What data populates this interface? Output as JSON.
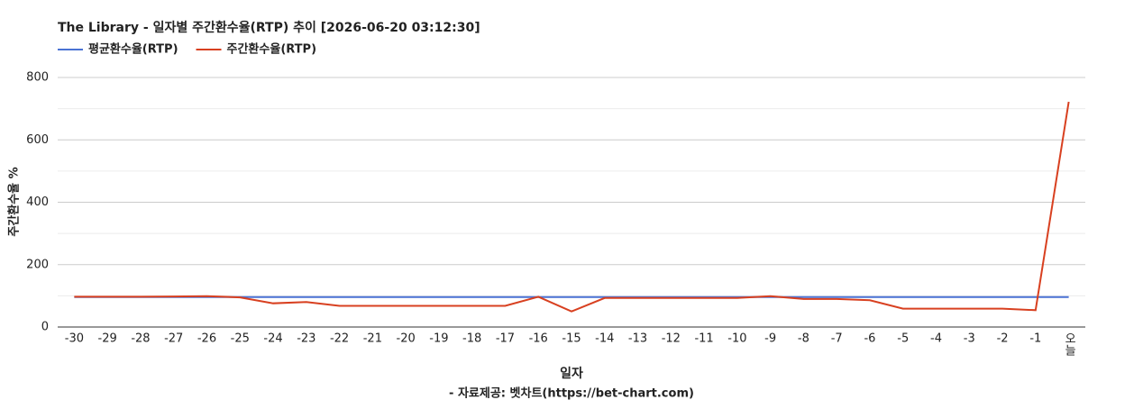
{
  "chart_data": {
    "type": "line",
    "title": "The Library - 일자별 주간환수율(RTP) 추이 [2026-06-20 03:12:30]",
    "x_label": "일자",
    "y_label": "주간환수율 %",
    "footer": "- 자료제공: 벳차트(https://bet-chart.com)",
    "categories": [
      "-30",
      "-29",
      "-28",
      "-27",
      "-26",
      "-25",
      "-24",
      "-23",
      "-22",
      "-21",
      "-20",
      "-19",
      "-18",
      "-17",
      "-16",
      "-15",
      "-14",
      "-13",
      "-12",
      "-11",
      "-10",
      "-9",
      "-8",
      "-7",
      "-6",
      "-5",
      "-4",
      "-3",
      "-2",
      "-1",
      "오늘"
    ],
    "series": [
      {
        "name": "평균환수율(RTP)",
        "color": "#4a72d4",
        "values": [
          96,
          96,
          96,
          96,
          96,
          96,
          96,
          96,
          96,
          96,
          96,
          96,
          96,
          96,
          96,
          96,
          96,
          96,
          96,
          96,
          96,
          96,
          96,
          96,
          96,
          96,
          96,
          96,
          96,
          96,
          96
        ]
      },
      {
        "name": "주간환수율(RTP)",
        "color": "#d84020",
        "values": [
          97,
          97,
          97,
          98,
          99,
          95,
          76,
          80,
          68,
          68,
          68,
          68,
          68,
          68,
          97,
          50,
          93,
          93,
          93,
          93,
          93,
          99,
          90,
          90,
          86,
          59,
          59,
          59,
          59,
          54,
          722
        ]
      }
    ],
    "ylim": [
      0,
      800
    ],
    "yticks": [
      0,
      200,
      400,
      600,
      800
    ],
    "minor_gridlines": [
      100,
      300,
      500,
      700
    ],
    "grid": true,
    "legend": "top-left"
  }
}
